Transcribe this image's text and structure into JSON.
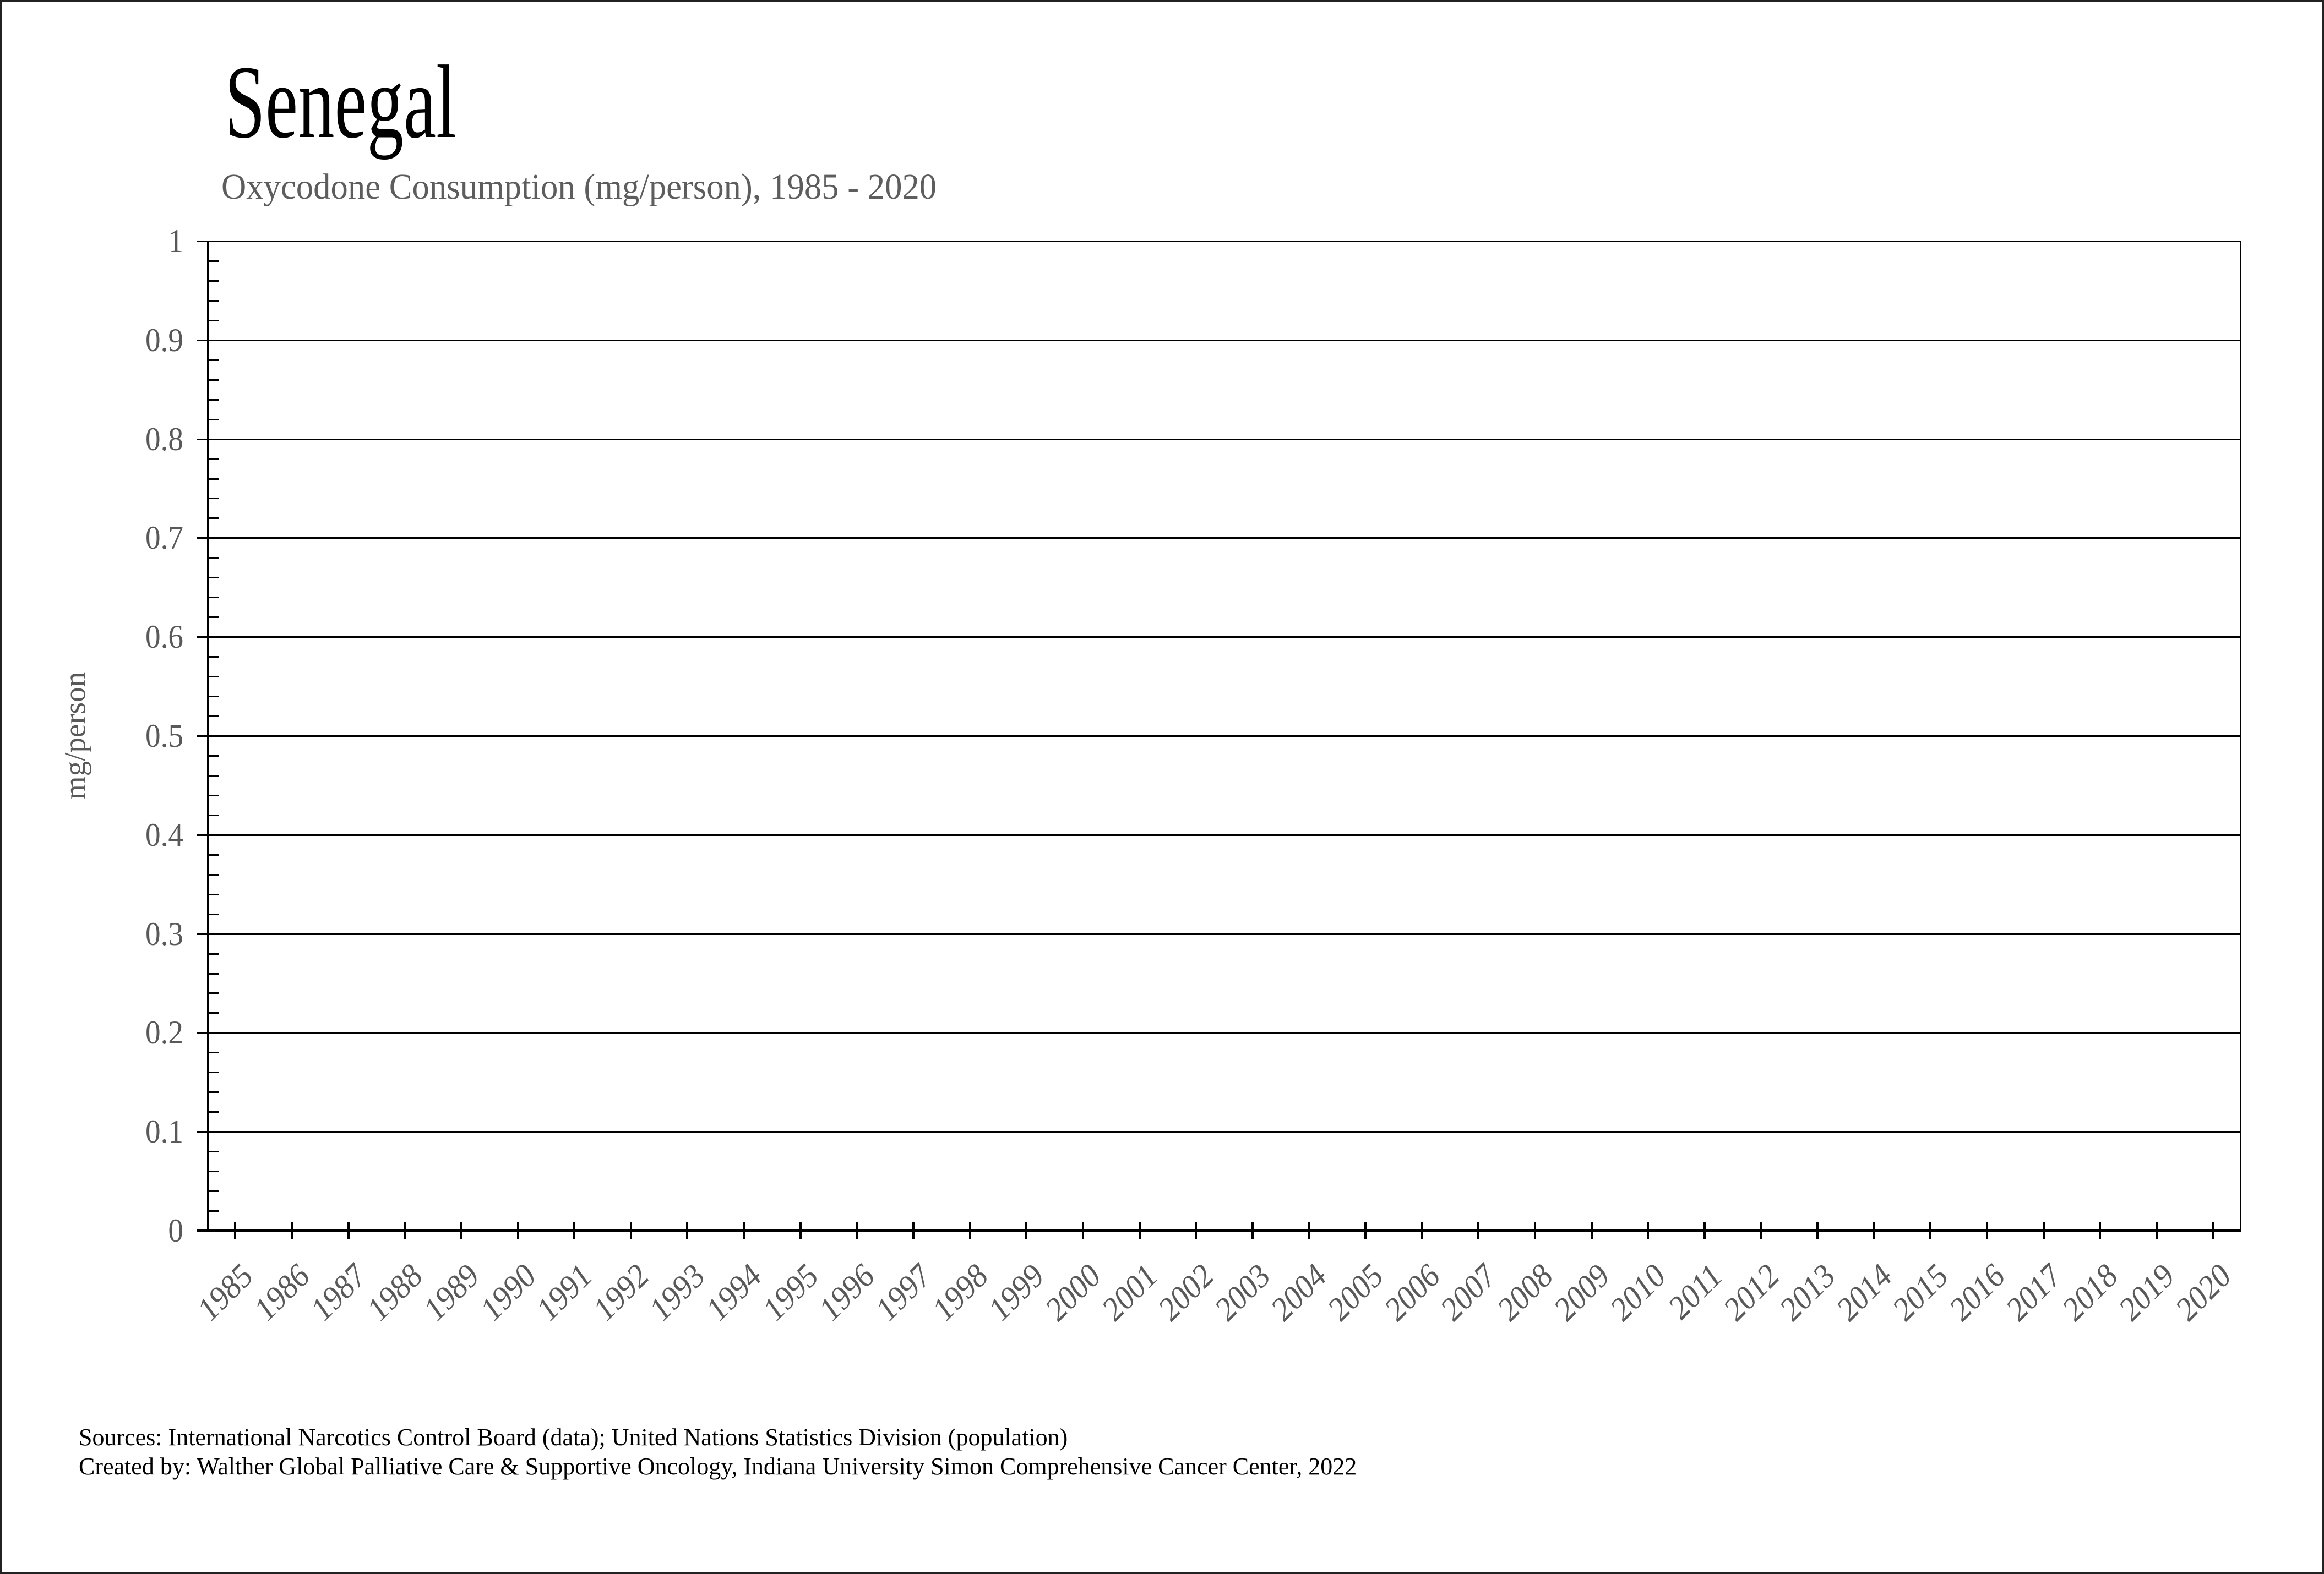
{
  "title": "Senegal",
  "subtitle": "Oxycodone Consumption (mg/person), 1985 - 2020",
  "y_axis": {
    "label": "mg/person",
    "ticks": [
      "1",
      "0.9",
      "0.8",
      "0.7",
      "0.6",
      "0.5",
      "0.4",
      "0.3",
      "0.2",
      "0.1",
      "0"
    ],
    "minor_ticks_per_interval": 4
  },
  "x_axis": {
    "ticks": [
      "1985",
      "1986",
      "1987",
      "1988",
      "1989",
      "1990",
      "1991",
      "1992",
      "1993",
      "1994",
      "1995",
      "1996",
      "1997",
      "1998",
      "1999",
      "2000",
      "2001",
      "2002",
      "2003",
      "2004",
      "2005",
      "2006",
      "2007",
      "2008",
      "2009",
      "2010",
      "2011",
      "2012",
      "2013",
      "2014",
      "2015",
      "2016",
      "2017",
      "2018",
      "2019",
      "2020"
    ]
  },
  "footer": {
    "sources_line": "Sources: International Narcotics Control Board (data); United Nations Statistics Division (population)",
    "credit_line": "Created by: Walther Global Palliative Care & Supportive Oncology, Indiana University Simon Comprehensive Cancer Center, 2022"
  },
  "colors": {
    "title": "#000000",
    "muted_text": "#595959",
    "grid_and_axes": "#000000",
    "background": "#ffffff",
    "frame_border": "#222222"
  },
  "chart_data": {
    "type": "line",
    "title": "Senegal",
    "subtitle": "Oxycodone Consumption (mg/person), 1985 - 2020",
    "categories": [
      1985,
      1986,
      1987,
      1988,
      1989,
      1990,
      1991,
      1992,
      1993,
      1994,
      1995,
      1996,
      1997,
      1998,
      1999,
      2000,
      2001,
      2002,
      2003,
      2004,
      2005,
      2006,
      2007,
      2008,
      2009,
      2010,
      2011,
      2012,
      2013,
      2014,
      2015,
      2016,
      2017,
      2018,
      2019,
      2020
    ],
    "series": [],
    "xlabel": "",
    "ylabel": "mg/person",
    "ylim": [
      0,
      1
    ],
    "y_major_step": 0.1,
    "y_minor_step": 0.02,
    "grid": "horizontal-major",
    "legend": "none",
    "plot_is_empty": true
  }
}
